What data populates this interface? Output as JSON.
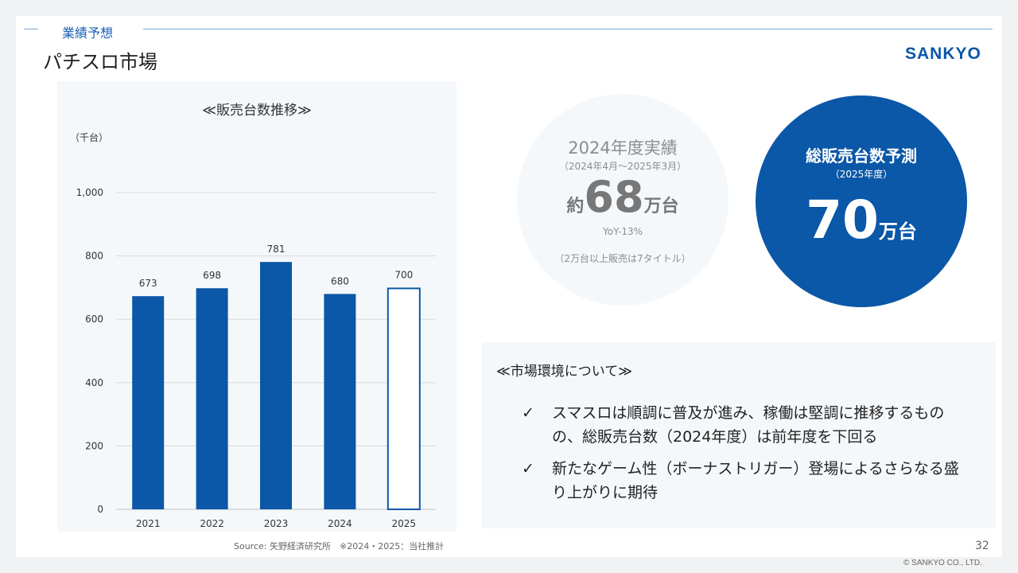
{
  "header": {
    "section_label": "業績予想",
    "title": "パチスロ市場",
    "logo_text": "SANKYO"
  },
  "chart_data": {
    "type": "bar",
    "title": "≪販売台数推移≫",
    "ylabel": "（千台）",
    "categories": [
      "2021",
      "2022",
      "2023",
      "2024",
      "2025"
    ],
    "values": [
      673,
      698,
      781,
      680,
      700
    ],
    "value_labels": [
      "673",
      "698",
      "781",
      "680",
      "700"
    ],
    "y_ticks": [
      0,
      200,
      400,
      600,
      800,
      1000
    ],
    "y_tick_labels": [
      "0",
      "200",
      "400",
      "600",
      "800",
      "1,000"
    ],
    "ylim": [
      0,
      1000
    ],
    "grid": true,
    "bar_color": "#0b57a8",
    "forecast_category": "2025",
    "forecast_style": "outlined"
  },
  "source": "Source: 矢野経済研究所　※2024・2025：当社推計",
  "actual": {
    "title": "2024年度実績",
    "period": "（2024年4月～2025年3月）",
    "prefix": "約",
    "number": "68",
    "unit": "万台",
    "yoy": "YoY-13%",
    "note": "（2万台以上販売は7タイトル）"
  },
  "forecast": {
    "title": "総販売台数予測",
    "subtitle": "（2025年度）",
    "number": "70",
    "unit": "万台",
    "color": "#0b57a8"
  },
  "environment": {
    "title": "≪市場環境について≫",
    "check_glyph": "✓",
    "items": [
      {
        "text": "スマスロは順調に普及が進み、稼働は堅調に推移するものの、総販売台数（2024年度）は前年度を下回る"
      },
      {
        "text": "新たなゲーム性（ボーナストリガー）登場によるさらなる盛り上がりに期待"
      }
    ]
  },
  "footer": {
    "page_number": "32",
    "copyright": "© SANKYO CO., LTD."
  }
}
